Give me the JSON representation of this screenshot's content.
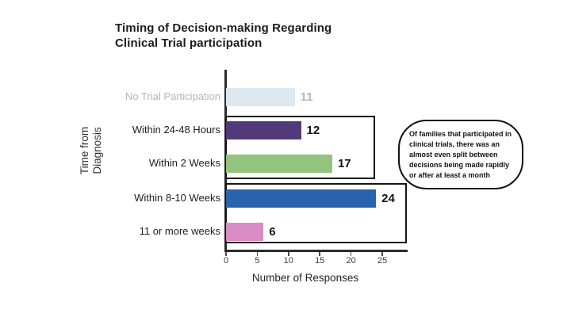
{
  "title": "Timing of Decision-making Regarding\nClinical Trial participation",
  "axes": {
    "y_label": "Time from\nDiagnosis",
    "x_label": "Number of Responses"
  },
  "annotation": {
    "text": "Of families that participated in clinical trials, there was an almost even split between decisions being made rapidly or after at least a month"
  },
  "chart_data": {
    "type": "bar",
    "orientation": "horizontal",
    "title": "Timing of Decision-making Regarding Clinical Trial participation",
    "xlabel": "Number of Responses",
    "ylabel": "Time from Diagnosis",
    "xlim": [
      0,
      29
    ],
    "xticks": [
      0,
      5,
      10,
      15,
      20,
      25
    ],
    "grid": false,
    "categories": [
      "No Trial Participation",
      "Within 24-48 Hours",
      "Within 2 Weeks",
      "Within 8-10 Weeks",
      "11 or more weeks"
    ],
    "values": [
      11,
      12,
      17,
      24,
      6
    ],
    "bar_colors": [
      "#dce8ef",
      "#53397a",
      "#92c47e",
      "#2a62ac",
      "#d98cc6"
    ],
    "label_colors": [
      "#b4b4b4",
      "#1e1e1e",
      "#1e1e1e",
      "#1e1e1e",
      "#1e1e1e"
    ],
    "value_colors": [
      "#b0b8bf",
      "#141414",
      "#141414",
      "#141414",
      "#141414"
    ],
    "group_boxes": [
      {
        "rows": [
          "Within 24-48 Hours",
          "Within 2 Weeks"
        ]
      },
      {
        "rows": [
          "Within 8-10 Weeks",
          "11 or more weeks"
        ]
      }
    ]
  }
}
